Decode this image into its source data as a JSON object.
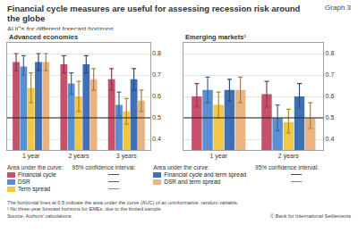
{
  "title": "Financial cycle measures are useful for assessing recession risk around the globe",
  "subtitle": "AUCs for different forecast horizons",
  "graph_label": "Graph 3",
  "legend_headers": [
    "Area under the curve:",
    "95% confidence interval:"
  ],
  "notes": [
    "The horizontal lines at 0.5 indicate the area under the curve (AUC) of an uninformative, random variable.",
    "¹  No three-year forecast horizons for EMEs, due to the limited sample."
  ],
  "source": "Source: Authors' calculations.",
  "copyright": "© Bank for International Settlements",
  "chart_data": [
    {
      "type": "bar",
      "title": "Advanced economies",
      "categories": [
        "1 year",
        "2 years",
        "3 years"
      ],
      "ylim": [
        0.35,
        0.85
      ],
      "yticks": [
        0.4,
        0.5,
        0.6,
        0.7,
        0.8
      ],
      "hline": 0.5,
      "series": [
        {
          "name": "Financial cycle",
          "color": "#c5516c",
          "values": [
            0.76,
            0.75,
            0.68
          ],
          "ci_low": [
            0.72,
            0.71,
            0.63
          ],
          "ci_high": [
            0.8,
            0.79,
            0.73
          ]
        },
        {
          "name": "DSR",
          "color": "#5b8fd4",
          "values": [
            0.74,
            0.66,
            0.56
          ],
          "ci_low": [
            0.7,
            0.61,
            0.51
          ],
          "ci_high": [
            0.79,
            0.71,
            0.62
          ]
        },
        {
          "name": "Term spread",
          "color": "#f2c744",
          "values": [
            0.64,
            0.6,
            0.53
          ],
          "ci_low": [
            0.57,
            0.53,
            0.47
          ],
          "ci_high": [
            0.71,
            0.67,
            0.59
          ]
        },
        {
          "name": "Financial cycle and term spread",
          "color": "#3f6fb5",
          "values": [
            0.76,
            0.75,
            0.68
          ],
          "ci_low": [
            0.72,
            0.71,
            0.63
          ],
          "ci_high": [
            0.8,
            0.79,
            0.73
          ]
        },
        {
          "name": "DSR and term spread",
          "color": "#e9b47d",
          "values": [
            0.76,
            0.68,
            0.58
          ],
          "ci_low": [
            0.72,
            0.63,
            0.53
          ],
          "ci_high": [
            0.8,
            0.73,
            0.63
          ]
        }
      ]
    },
    {
      "type": "bar",
      "title": "Emerging markets¹",
      "categories": [
        "1 year",
        "2 years"
      ],
      "ylim": [
        0.35,
        0.85
      ],
      "yticks": [
        0.4,
        0.5,
        0.6,
        0.7,
        0.8
      ],
      "hline": 0.5,
      "series": [
        {
          "name": "Financial cycle",
          "color": "#c5516c",
          "values": [
            0.6,
            0.61
          ],
          "ci_low": [
            0.55,
            0.55
          ],
          "ci_high": [
            0.66,
            0.67
          ]
        },
        {
          "name": "DSR",
          "color": "#5b8fd4",
          "values": [
            0.63,
            0.5
          ],
          "ci_low": [
            0.57,
            0.44
          ],
          "ci_high": [
            0.69,
            0.56
          ]
        },
        {
          "name": "Term spread",
          "color": "#f2c744",
          "values": [
            0.56,
            0.48
          ],
          "ci_low": [
            0.5,
            0.43
          ],
          "ci_high": [
            0.62,
            0.54
          ]
        },
        {
          "name": "Financial cycle and term spread",
          "color": "#3f6fb5",
          "values": [
            0.63,
            0.6
          ],
          "ci_low": [
            0.58,
            0.55
          ],
          "ci_high": [
            0.68,
            0.66
          ]
        },
        {
          "name": "DSR and term spread",
          "color": "#e9b47d",
          "values": [
            0.63,
            0.5
          ],
          "ci_low": [
            0.57,
            0.45
          ],
          "ci_high": [
            0.69,
            0.57
          ]
        }
      ]
    }
  ]
}
